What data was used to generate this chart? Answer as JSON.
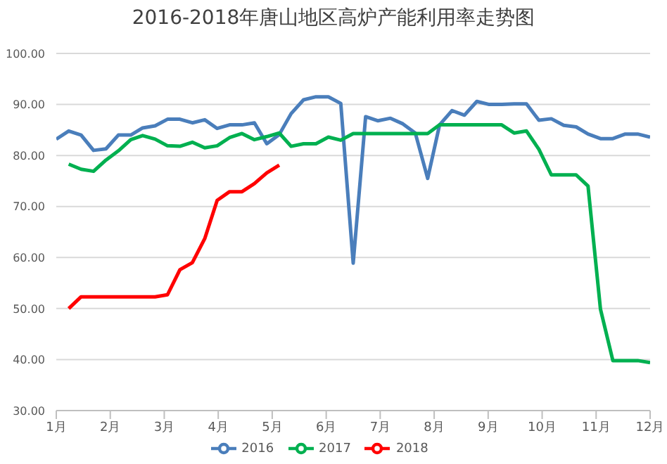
{
  "chart_data": {
    "type": "line",
    "title": "2016-2018年唐山地区高炉产能利用率走势图",
    "x": [
      1.0,
      1.23,
      1.46,
      1.69,
      1.92,
      2.15,
      2.38,
      2.6,
      2.83,
      3.06,
      3.29,
      3.52,
      3.75,
      3.98,
      4.21,
      4.44,
      4.67,
      4.9,
      5.13,
      5.35,
      5.58,
      5.81,
      6.04,
      6.27,
      6.5,
      6.73,
      6.96,
      7.19,
      7.42,
      7.65,
      7.88,
      8.1,
      8.33,
      8.56,
      8.79,
      9.02,
      9.25,
      9.48,
      9.71,
      9.94,
      10.17,
      10.4,
      10.63,
      10.85,
      11.08,
      11.31,
      11.54,
      11.77,
      12.0
    ],
    "series": [
      {
        "name": "2016",
        "color": "#4a7ebb",
        "values": [
          83.2,
          84.8,
          84.0,
          81.0,
          81.3,
          84.0,
          84.0,
          85.4,
          85.8,
          87.1,
          87.1,
          86.4,
          87.0,
          85.3,
          86.0,
          86.0,
          86.4,
          82.3,
          84.1,
          88.2,
          90.9,
          91.5,
          91.5,
          90.2,
          58.9,
          87.6,
          86.8,
          87.3,
          86.2,
          84.4,
          75.5,
          86.0,
          88.8,
          87.9,
          90.6,
          90.0,
          90.0,
          90.1,
          90.1,
          86.9,
          87.2,
          85.9,
          85.6,
          84.2,
          83.3,
          83.3,
          84.2,
          84.2,
          83.6
        ]
      },
      {
        "name": "2017",
        "color": "#00b050",
        "values": [
          null,
          78.3,
          77.3,
          76.9,
          79.1,
          80.9,
          83.1,
          83.9,
          83.2,
          81.9,
          81.8,
          82.6,
          81.5,
          81.9,
          83.5,
          84.3,
          83.1,
          83.7,
          84.4,
          81.8,
          82.3,
          82.3,
          83.6,
          83.0,
          84.3,
          84.3,
          84.3,
          84.3,
          84.3,
          84.3,
          84.3,
          86.0,
          86.0,
          86.0,
          86.0,
          86.0,
          86.0,
          84.4,
          84.8,
          81.2,
          76.2,
          76.2,
          76.2,
          74.0,
          49.9,
          39.8,
          39.8,
          39.8,
          39.4
        ]
      },
      {
        "name": "2018",
        "color": "#ff0000",
        "values": [
          null,
          50.0,
          52.3,
          52.3,
          52.3,
          52.3,
          52.3,
          52.3,
          52.3,
          52.7,
          57.6,
          59.0,
          63.7,
          71.2,
          72.9,
          72.9,
          74.5,
          76.6,
          78.1,
          null,
          null,
          null,
          null,
          null,
          null,
          null,
          null,
          null,
          null,
          null,
          null,
          null,
          null,
          null,
          null,
          null,
          null,
          null,
          null,
          null,
          null,
          null,
          null,
          null,
          null,
          null,
          null,
          null,
          null
        ]
      }
    ],
    "xlim": [
      1,
      12
    ],
    "xticks": [
      {
        "value": 1,
        "label": "1月"
      },
      {
        "value": 2,
        "label": "2月"
      },
      {
        "value": 3,
        "label": "3月"
      },
      {
        "value": 4,
        "label": "4月"
      },
      {
        "value": 5,
        "label": "5月"
      },
      {
        "value": 6,
        "label": "6月"
      },
      {
        "value": 7,
        "label": "7月"
      },
      {
        "value": 8,
        "label": "8月"
      },
      {
        "value": 9,
        "label": "9月"
      },
      {
        "value": 10,
        "label": "10月"
      },
      {
        "value": 11,
        "label": "11月"
      },
      {
        "value": 12,
        "label": "12月"
      }
    ],
    "ylim": [
      30,
      100
    ],
    "yticks": [
      {
        "value": 30,
        "label": "30.00"
      },
      {
        "value": 40,
        "label": "40.00"
      },
      {
        "value": 50,
        "label": "50.00"
      },
      {
        "value": 60,
        "label": "60.00"
      },
      {
        "value": 70,
        "label": "70.00"
      },
      {
        "value": 80,
        "label": "80.00"
      },
      {
        "value": 90,
        "label": "90.00"
      },
      {
        "value": 100,
        "label": "100.00"
      }
    ],
    "grid": "y",
    "legend": "bottom",
    "marker": "none",
    "line_style": "solid"
  }
}
